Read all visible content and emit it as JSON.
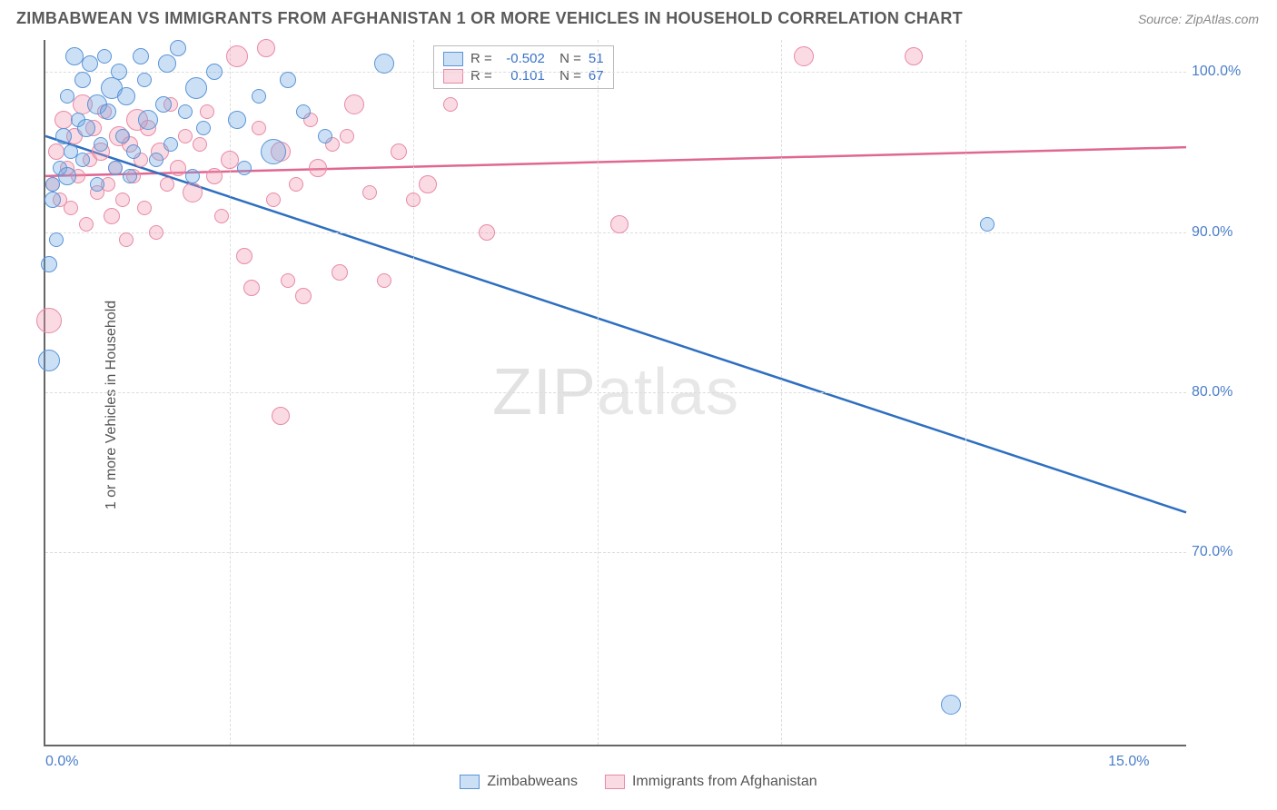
{
  "header": {
    "title": "ZIMBABWEAN VS IMMIGRANTS FROM AFGHANISTAN 1 OR MORE VEHICLES IN HOUSEHOLD CORRELATION CHART",
    "source": "Source: ZipAtlas.com"
  },
  "ylabel": "1 or more Vehicles in Household",
  "watermark": {
    "bold": "ZIP",
    "thin": "atlas"
  },
  "axes": {
    "xmin": 0,
    "xmax": 15.5,
    "ymin": 58,
    "ymax": 102,
    "xticks": [
      {
        "v": 0.0,
        "label": "0.0%",
        "cls": "left"
      },
      {
        "v": 15.0,
        "label": "15.0%",
        "cls": "right"
      }
    ],
    "yticks": [
      {
        "v": 100,
        "label": "100.0%"
      },
      {
        "v": 90,
        "label": "90.0%"
      },
      {
        "v": 80,
        "label": "80.0%"
      },
      {
        "v": 70,
        "label": "70.0%"
      }
    ],
    "vgrid": [
      2.5,
      5.0,
      7.5,
      10.0,
      12.5
    ],
    "grid_color": "#dddddd"
  },
  "series": {
    "blue": {
      "label": "Zimbabweans",
      "fill": "rgba(110,165,225,0.35)",
      "stroke": "#5a94d8",
      "line_stroke": "#2e6fc0",
      "r": "-0.502",
      "n": "51",
      "trend": {
        "x1": 0,
        "y1": 96.0,
        "x2": 15.5,
        "y2": 72.5
      },
      "points": [
        {
          "x": 0.05,
          "y": 88.0,
          "r": 9
        },
        {
          "x": 0.05,
          "y": 82.0,
          "r": 12
        },
        {
          "x": 0.1,
          "y": 93.0,
          "r": 8
        },
        {
          "x": 0.1,
          "y": 92.0,
          "r": 9
        },
        {
          "x": 0.15,
          "y": 89.5,
          "r": 8
        },
        {
          "x": 0.2,
          "y": 94.0,
          "r": 8
        },
        {
          "x": 0.25,
          "y": 96.0,
          "r": 9
        },
        {
          "x": 0.3,
          "y": 93.5,
          "r": 10
        },
        {
          "x": 0.3,
          "y": 98.5,
          "r": 8
        },
        {
          "x": 0.35,
          "y": 95.0,
          "r": 8
        },
        {
          "x": 0.4,
          "y": 101.0,
          "r": 10
        },
        {
          "x": 0.45,
          "y": 97.0,
          "r": 8
        },
        {
          "x": 0.5,
          "y": 99.5,
          "r": 9
        },
        {
          "x": 0.5,
          "y": 94.5,
          "r": 8
        },
        {
          "x": 0.55,
          "y": 96.5,
          "r": 10
        },
        {
          "x": 0.6,
          "y": 100.5,
          "r": 9
        },
        {
          "x": 0.7,
          "y": 98.0,
          "r": 11
        },
        {
          "x": 0.7,
          "y": 93.0,
          "r": 8
        },
        {
          "x": 0.75,
          "y": 95.5,
          "r": 8
        },
        {
          "x": 0.8,
          "y": 101.0,
          "r": 8
        },
        {
          "x": 0.85,
          "y": 97.5,
          "r": 9
        },
        {
          "x": 0.9,
          "y": 99.0,
          "r": 12
        },
        {
          "x": 0.95,
          "y": 94.0,
          "r": 8
        },
        {
          "x": 1.0,
          "y": 100.0,
          "r": 9
        },
        {
          "x": 1.05,
          "y": 96.0,
          "r": 8
        },
        {
          "x": 1.1,
          "y": 98.5,
          "r": 10
        },
        {
          "x": 1.15,
          "y": 93.5,
          "r": 8
        },
        {
          "x": 1.2,
          "y": 95.0,
          "r": 8
        },
        {
          "x": 1.3,
          "y": 101.0,
          "r": 9
        },
        {
          "x": 1.35,
          "y": 99.5,
          "r": 8
        },
        {
          "x": 1.4,
          "y": 97.0,
          "r": 11
        },
        {
          "x": 1.5,
          "y": 94.5,
          "r": 8
        },
        {
          "x": 1.6,
          "y": 98.0,
          "r": 9
        },
        {
          "x": 1.65,
          "y": 100.5,
          "r": 10
        },
        {
          "x": 1.7,
          "y": 95.5,
          "r": 8
        },
        {
          "x": 1.8,
          "y": 101.5,
          "r": 9
        },
        {
          "x": 1.9,
          "y": 97.5,
          "r": 8
        },
        {
          "x": 2.0,
          "y": 93.5,
          "r": 8
        },
        {
          "x": 2.05,
          "y": 99.0,
          "r": 12
        },
        {
          "x": 2.15,
          "y": 96.5,
          "r": 8
        },
        {
          "x": 2.3,
          "y": 100.0,
          "r": 9
        },
        {
          "x": 2.6,
          "y": 97.0,
          "r": 10
        },
        {
          "x": 2.7,
          "y": 94.0,
          "r": 8
        },
        {
          "x": 2.9,
          "y": 98.5,
          "r": 8
        },
        {
          "x": 3.1,
          "y": 95.0,
          "r": 14
        },
        {
          "x": 3.3,
          "y": 99.5,
          "r": 9
        },
        {
          "x": 3.5,
          "y": 97.5,
          "r": 8
        },
        {
          "x": 3.8,
          "y": 96.0,
          "r": 8
        },
        {
          "x": 4.6,
          "y": 100.5,
          "r": 11
        },
        {
          "x": 12.3,
          "y": 60.5,
          "r": 11
        },
        {
          "x": 12.8,
          "y": 90.5,
          "r": 8
        }
      ]
    },
    "pink": {
      "label": "Immigrants from Afghanistan",
      "fill": "rgba(240,150,175,0.35)",
      "stroke": "#e88aa5",
      "line_stroke": "#e06792",
      "r": "0.101",
      "n": "67",
      "trend": {
        "x1": 0,
        "y1": 93.5,
        "x2": 15.5,
        "y2": 95.3
      },
      "points": [
        {
          "x": 0.05,
          "y": 84.5,
          "r": 14
        },
        {
          "x": 0.1,
          "y": 93.0,
          "r": 8
        },
        {
          "x": 0.15,
          "y": 95.0,
          "r": 9
        },
        {
          "x": 0.2,
          "y": 92.0,
          "r": 8
        },
        {
          "x": 0.25,
          "y": 97.0,
          "r": 10
        },
        {
          "x": 0.3,
          "y": 94.0,
          "r": 8
        },
        {
          "x": 0.35,
          "y": 91.5,
          "r": 8
        },
        {
          "x": 0.4,
          "y": 96.0,
          "r": 9
        },
        {
          "x": 0.45,
          "y": 93.5,
          "r": 8
        },
        {
          "x": 0.5,
          "y": 98.0,
          "r": 11
        },
        {
          "x": 0.55,
          "y": 90.5,
          "r": 8
        },
        {
          "x": 0.6,
          "y": 94.5,
          "r": 8
        },
        {
          "x": 0.65,
          "y": 96.5,
          "r": 9
        },
        {
          "x": 0.7,
          "y": 92.5,
          "r": 8
        },
        {
          "x": 0.75,
          "y": 95.0,
          "r": 10
        },
        {
          "x": 0.8,
          "y": 97.5,
          "r": 8
        },
        {
          "x": 0.85,
          "y": 93.0,
          "r": 8
        },
        {
          "x": 0.9,
          "y": 91.0,
          "r": 9
        },
        {
          "x": 0.95,
          "y": 94.0,
          "r": 8
        },
        {
          "x": 1.0,
          "y": 96.0,
          "r": 11
        },
        {
          "x": 1.05,
          "y": 92.0,
          "r": 8
        },
        {
          "x": 1.1,
          "y": 89.5,
          "r": 8
        },
        {
          "x": 1.15,
          "y": 95.5,
          "r": 9
        },
        {
          "x": 1.2,
          "y": 93.5,
          "r": 8
        },
        {
          "x": 1.25,
          "y": 97.0,
          "r": 12
        },
        {
          "x": 1.3,
          "y": 94.5,
          "r": 8
        },
        {
          "x": 1.35,
          "y": 91.5,
          "r": 8
        },
        {
          "x": 1.4,
          "y": 96.5,
          "r": 9
        },
        {
          "x": 1.5,
          "y": 90.0,
          "r": 8
        },
        {
          "x": 1.55,
          "y": 95.0,
          "r": 10
        },
        {
          "x": 1.65,
          "y": 93.0,
          "r": 8
        },
        {
          "x": 1.7,
          "y": 98.0,
          "r": 8
        },
        {
          "x": 1.8,
          "y": 94.0,
          "r": 9
        },
        {
          "x": 1.9,
          "y": 96.0,
          "r": 8
        },
        {
          "x": 2.0,
          "y": 92.5,
          "r": 11
        },
        {
          "x": 2.1,
          "y": 95.5,
          "r": 8
        },
        {
          "x": 2.2,
          "y": 97.5,
          "r": 8
        },
        {
          "x": 2.3,
          "y": 93.5,
          "r": 9
        },
        {
          "x": 2.4,
          "y": 91.0,
          "r": 8
        },
        {
          "x": 2.5,
          "y": 94.5,
          "r": 10
        },
        {
          "x": 2.6,
          "y": 101.0,
          "r": 12
        },
        {
          "x": 2.7,
          "y": 88.5,
          "r": 9
        },
        {
          "x": 2.8,
          "y": 86.5,
          "r": 9
        },
        {
          "x": 2.9,
          "y": 96.5,
          "r": 8
        },
        {
          "x": 3.0,
          "y": 101.5,
          "r": 10
        },
        {
          "x": 3.1,
          "y": 92.0,
          "r": 8
        },
        {
          "x": 3.2,
          "y": 95.0,
          "r": 11
        },
        {
          "x": 3.3,
          "y": 87.0,
          "r": 8
        },
        {
          "x": 3.4,
          "y": 93.0,
          "r": 8
        },
        {
          "x": 3.5,
          "y": 86.0,
          "r": 9
        },
        {
          "x": 3.6,
          "y": 97.0,
          "r": 8
        },
        {
          "x": 3.7,
          "y": 94.0,
          "r": 10
        },
        {
          "x": 3.2,
          "y": 78.5,
          "r": 10
        },
        {
          "x": 3.9,
          "y": 95.5,
          "r": 8
        },
        {
          "x": 4.0,
          "y": 87.5,
          "r": 9
        },
        {
          "x": 4.1,
          "y": 96.0,
          "r": 8
        },
        {
          "x": 4.2,
          "y": 98.0,
          "r": 11
        },
        {
          "x": 4.4,
          "y": 92.5,
          "r": 8
        },
        {
          "x": 4.6,
          "y": 87.0,
          "r": 8
        },
        {
          "x": 4.8,
          "y": 95.0,
          "r": 9
        },
        {
          "x": 5.0,
          "y": 92.0,
          "r": 8
        },
        {
          "x": 5.2,
          "y": 93.0,
          "r": 10
        },
        {
          "x": 5.5,
          "y": 98.0,
          "r": 8
        },
        {
          "x": 6.0,
          "y": 90.0,
          "r": 9
        },
        {
          "x": 7.8,
          "y": 90.5,
          "r": 10
        },
        {
          "x": 10.3,
          "y": 101.0,
          "r": 11
        },
        {
          "x": 11.8,
          "y": 101.0,
          "r": 10
        }
      ]
    }
  }
}
